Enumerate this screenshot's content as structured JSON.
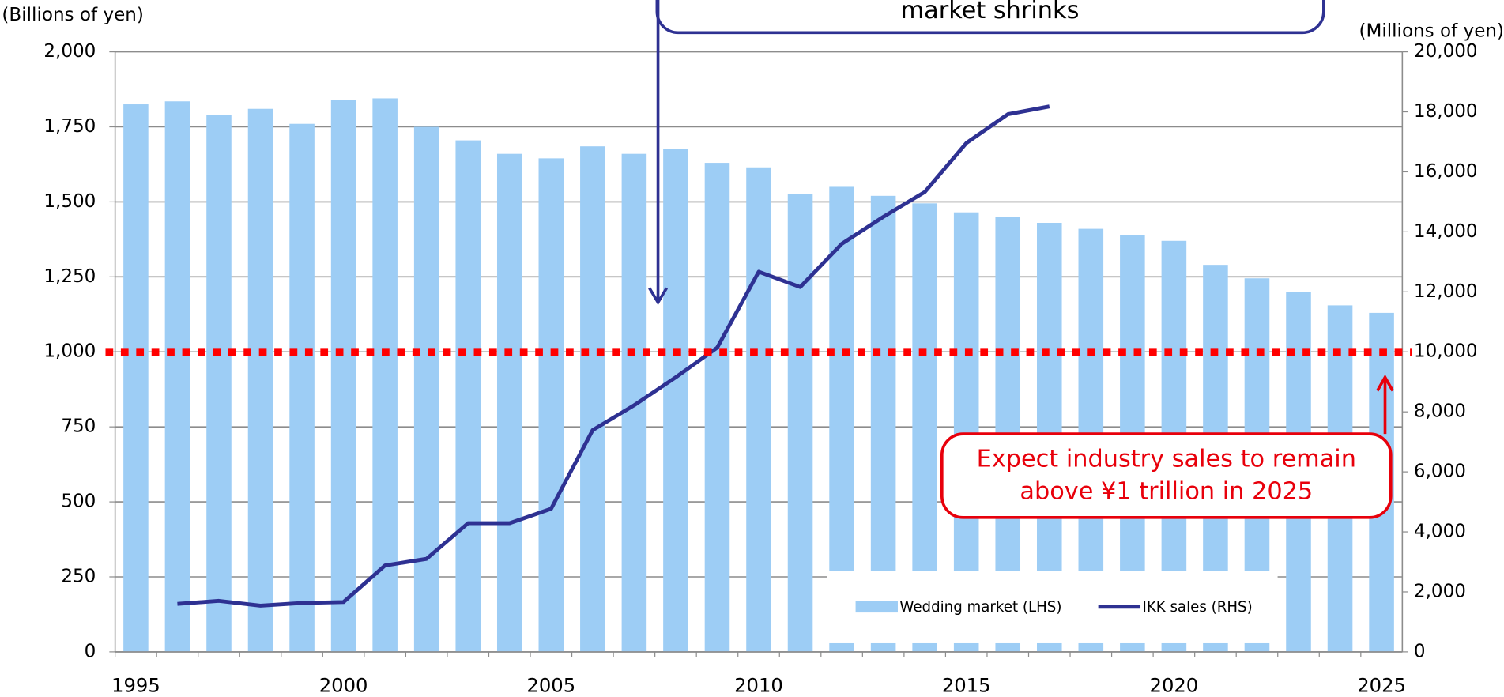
{
  "chart_data": {
    "type": "bar_line",
    "y_label": "(Billions of yen)",
    "y2_label": "(Millions of yen)",
    "categories": [
      "1995",
      null,
      null,
      null,
      null,
      "2000",
      null,
      null,
      null,
      null,
      "2005",
      null,
      null,
      null,
      null,
      "2010",
      null,
      null,
      null,
      null,
      "2015",
      null,
      null,
      null,
      null,
      "2020",
      null,
      null,
      null,
      null,
      "2025"
    ],
    "series": [
      {
        "name": "Wedding market (LHS)",
        "type": "bar",
        "color": "#9dcdf5",
        "values": [
          1825,
          1835,
          1790,
          1810,
          1760,
          1840,
          1845,
          1750,
          1705,
          1660,
          1645,
          1685,
          1660,
          1675,
          1630,
          1615,
          1525,
          1550,
          1520,
          1495,
          1465,
          1450,
          1430,
          1410,
          1390,
          1370,
          1290,
          1245,
          1200,
          1155,
          1130
        ]
      },
      {
        "name": "IKK sales (RHS)",
        "type": "line",
        "axis": "y2",
        "color": "#2e3192",
        "values": [
          null,
          1600,
          1700,
          1540,
          1630,
          1660,
          2880,
          3100,
          4290,
          4290,
          4770,
          7390,
          8220,
          9150,
          10140,
          12670,
          12160,
          13600,
          14500,
          15330,
          16960,
          17920,
          18180,
          null,
          null,
          null,
          null,
          null,
          null,
          null,
          null
        ]
      }
    ],
    "ylim": [
      0,
      2000
    ],
    "yticks": [
      0,
      250,
      500,
      750,
      {
        "value": 1000,
        "label": "1,000"
      },
      {
        "value": 1250,
        "label": "1,250"
      },
      {
        "value": 1500,
        "label": "1,500"
      },
      {
        "value": 1750,
        "label": "1,750"
      },
      {
        "value": 2000,
        "label": "2,000"
      }
    ],
    "y2lim": [
      0,
      20000
    ],
    "y2ticks": [
      0,
      {
        "value": 2000,
        "label": "2,000"
      },
      {
        "value": 4000,
        "label": "4,000"
      },
      {
        "value": 6000,
        "label": "6,000"
      },
      {
        "value": 8000,
        "label": "8,000"
      },
      {
        "value": 10000,
        "label": "10,000"
      },
      {
        "value": 12000,
        "label": "12,000"
      },
      {
        "value": 14000,
        "label": "14,000"
      },
      {
        "value": 16000,
        "label": "16,000"
      },
      {
        "value": 18000,
        "label": "18,000"
      },
      {
        "value": 20000,
        "label": "20,000"
      }
    ],
    "grid": true,
    "legend": "lower right",
    "reference_line": {
      "value": 1000,
      "color": "#ff0000"
    },
    "annotations": [
      {
        "lines": [
          "market shrinks"
        ],
        "color": "#2e3192"
      },
      {
        "lines": [
          "Expect industry sales to remain",
          "above ¥1 trillion in 2025"
        ],
        "color": "#e8000b"
      }
    ]
  }
}
